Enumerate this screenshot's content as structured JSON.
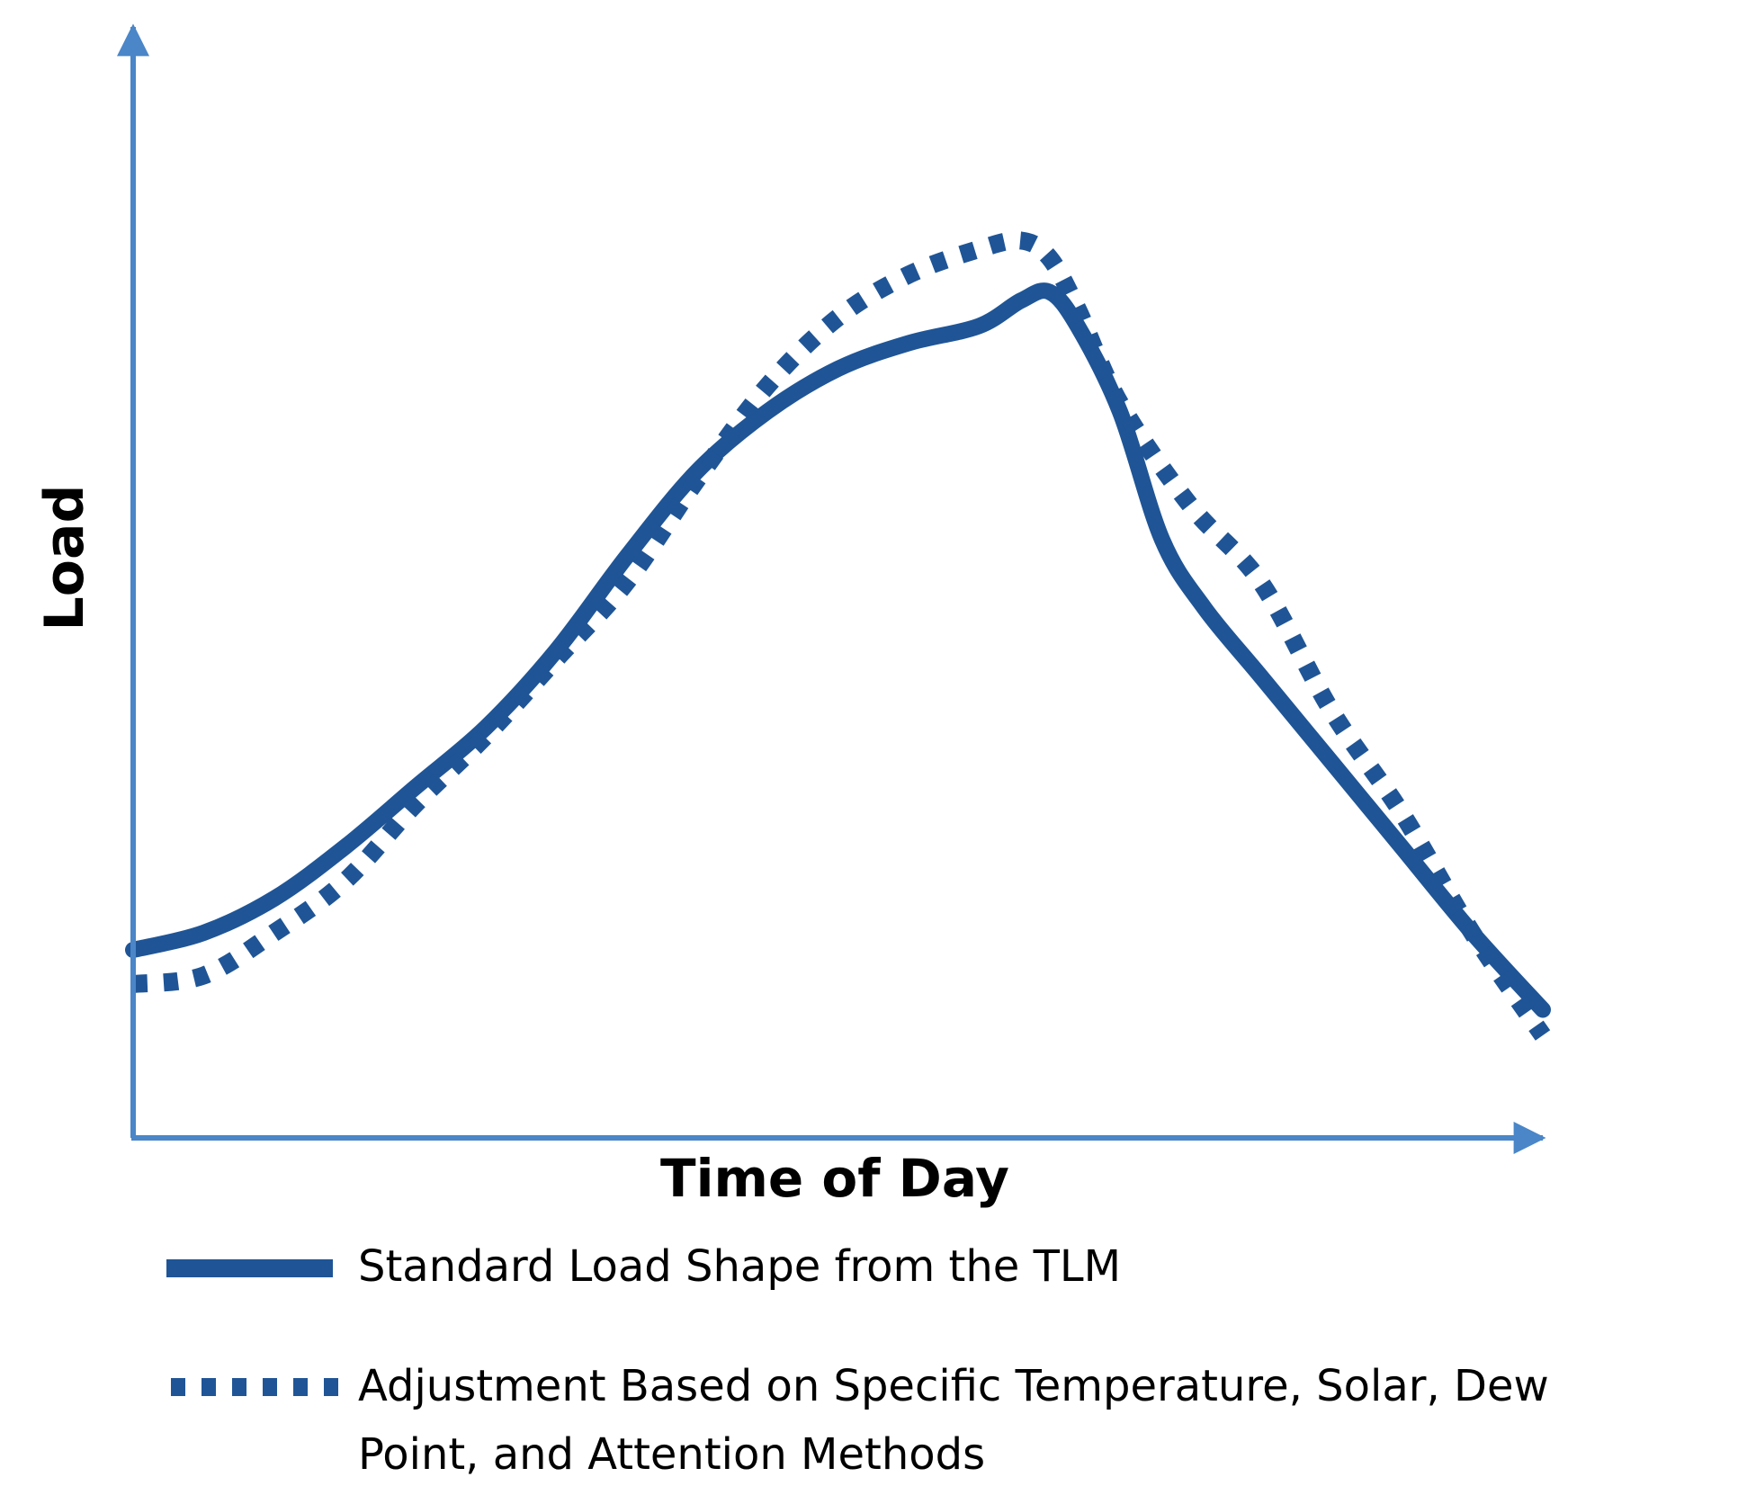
{
  "chart_data": {
    "type": "line",
    "title": "",
    "xlabel": "Time of Day",
    "ylabel": "Load",
    "xlim": [
      0,
      100
    ],
    "ylim": [
      0,
      100
    ],
    "grid": false,
    "legend_position": "bottom",
    "axis_color": "#4a86c8",
    "series": [
      {
        "name": "Standard Load Shape from the TLM",
        "style": "solid",
        "color": "#1f5596",
        "x": [
          0,
          5,
          10,
          15,
          20,
          25,
          30,
          35,
          40,
          45,
          50,
          55,
          60,
          63,
          65,
          67,
          70,
          73,
          76,
          80,
          85,
          90,
          95,
          100
        ],
        "y": [
          12,
          14,
          18,
          24,
          31,
          38,
          47,
          58,
          68,
          75,
          80,
          83,
          85,
          88,
          89,
          85,
          75,
          60,
          52,
          44,
          34,
          24,
          14,
          5
        ]
      },
      {
        "name": "Adjustment Based on Specific Temperature, Solar, Dew Point, and Attention Methods",
        "style": "dotted",
        "color": "#1f5596",
        "x": [
          0,
          5,
          10,
          15,
          20,
          25,
          30,
          35,
          40,
          45,
          50,
          55,
          60,
          63,
          65,
          67,
          70,
          75,
          80,
          85,
          90,
          95,
          100
        ],
        "y": [
          8,
          9,
          14,
          20,
          29,
          37,
          46,
          55,
          67,
          78,
          86,
          91,
          94,
          95,
          93,
          87,
          76,
          64,
          55,
          40,
          28,
          14,
          2
        ]
      }
    ]
  }
}
